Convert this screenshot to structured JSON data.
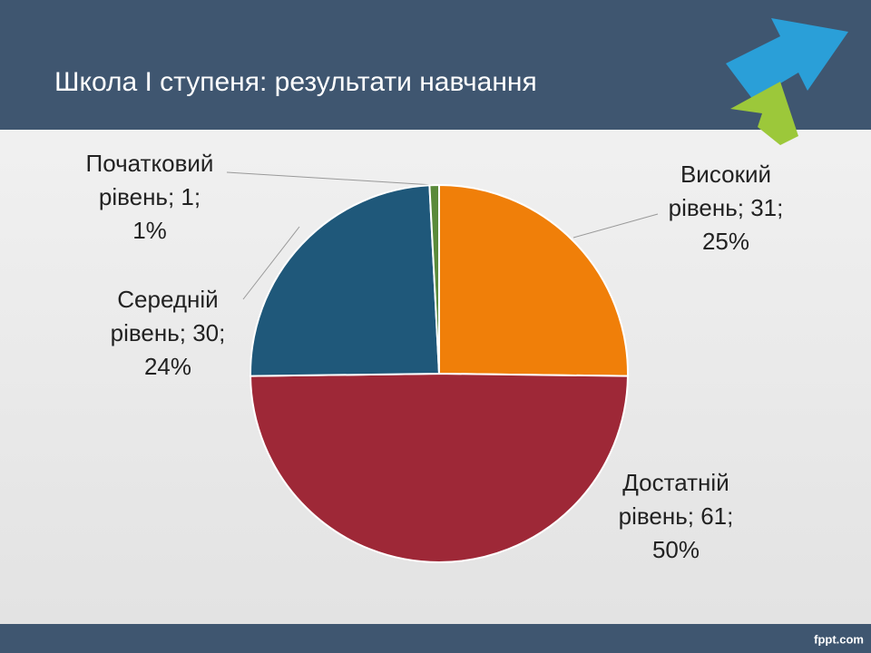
{
  "chart_data": {
    "type": "pie",
    "title": "Школа І ступеня: результати навчання",
    "values": [
      31,
      61,
      30,
      1
    ],
    "value_labels": [
      "Високий рівень; 31; 25%",
      "Достатній рівень; 61; 50%",
      "Середній рівень; 30; 24%",
      "Початковий рівень; 1; 1%"
    ],
    "colors": [
      "#f07f09",
      "#9e2837",
      "#1f587a",
      "#5a8a3a"
    ]
  },
  "footer": "fppt.com"
}
